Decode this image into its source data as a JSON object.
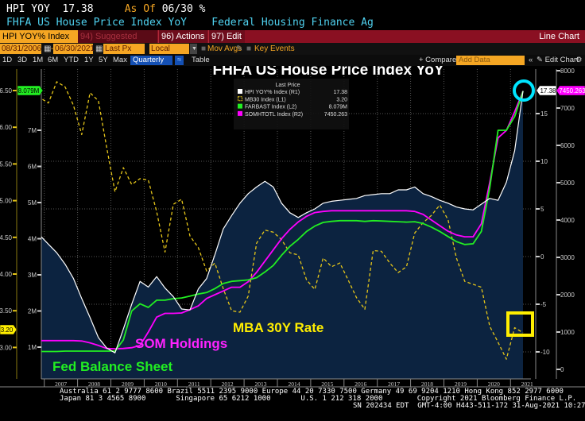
{
  "header": {
    "ticker": "HPI YOY",
    "value": "17.38",
    "as_of_label": "As Of",
    "as_of_date": "06/30",
    "unit": "%",
    "description": "FHFA US House Price Index YoY",
    "source": "Federal Housing Finance Ag"
  },
  "toolbar": {
    "security": "HPI YOY% Index",
    "suggested_charts": "94) Suggested Charts",
    "actions": "96) Actions ▾",
    "edit": "97) Edit ▾",
    "view": "Line Chart",
    "start_date": "08/31/2006",
    "end_date": "06/30/2021",
    "date_sep": "-",
    "price_field": "Last Px",
    "currency": "Local CCY",
    "mov_avgs": "Mov Avgs",
    "key_events": "Key Events",
    "periods": [
      "1D",
      "3D",
      "1M",
      "6M",
      "YTD",
      "1Y",
      "5Y",
      "Max"
    ],
    "frequency": "Quarterly ▼",
    "table": "Table",
    "compare": "+ Compare ▾",
    "add_data_placeholder": "Add Data",
    "collapse": "«",
    "edit_chart": "✎ Edit Chart",
    "settings_icon": "⚙"
  },
  "footer": {
    "line1": "Australia 61 2 9777 8600 Brazil 5511 2395 9000 Europe 44 20 7330 7500 Germany 49 69 9204 1210 Hong Kong 852 2977 6000",
    "line2": "Japan 81 3 4565 8900       Singapore 65 6212 1000       U.S. 1 212 318 2000        Copyright 2021 Bloomberg Finance L.P.",
    "line3": "SN 202434 EDT  GMT-4:00 H443-511-172 31-Aug-2021 10:27:18"
  },
  "colors": {
    "hpi": "#ffffff",
    "hpi_fill": "#0c2340",
    "mb30": "#e6c619",
    "farbast": "#22ee22",
    "somhtotl": "#ff00ff",
    "toolbar_red": "#8a1022",
    "orange": "#f5a623",
    "highlight_circle": "#00e5ff",
    "highlight_box": "#ffee00"
  },
  "chart_data": {
    "type": "line",
    "title": "FHFA US House Price Index YoY",
    "x": [
      "2006Q3",
      "2006Q4",
      "2007Q1",
      "2007Q2",
      "2007Q3",
      "2007Q4",
      "2008Q1",
      "2008Q2",
      "2008Q3",
      "2008Q4",
      "2009Q1",
      "2009Q2",
      "2009Q3",
      "2009Q4",
      "2010Q1",
      "2010Q2",
      "2010Q3",
      "2010Q4",
      "2011Q1",
      "2011Q2",
      "2011Q3",
      "2011Q4",
      "2012Q1",
      "2012Q2",
      "2012Q3",
      "2012Q4",
      "2013Q1",
      "2013Q2",
      "2013Q3",
      "2013Q4",
      "2014Q1",
      "2014Q2",
      "2014Q3",
      "2014Q4",
      "2015Q1",
      "2015Q2",
      "2015Q3",
      "2015Q4",
      "2016Q1",
      "2016Q2",
      "2016Q3",
      "2016Q4",
      "2017Q1",
      "2017Q2",
      "2017Q3",
      "2017Q4",
      "2018Q1",
      "2018Q2",
      "2018Q3",
      "2018Q4",
      "2019Q1",
      "2019Q2",
      "2019Q3",
      "2019Q4",
      "2020Q1",
      "2020Q2",
      "2020Q3",
      "2020Q4",
      "2021Q1",
      "2021Q2"
    ],
    "x_tick_labels": [
      "2007",
      "2008",
      "2009",
      "2010",
      "2011",
      "2012",
      "2013",
      "2014",
      "2015",
      "2016",
      "2017",
      "2018",
      "2019",
      "2020",
      "2021"
    ],
    "series": [
      {
        "name": "HPI YOY% Index (R1)",
        "axis": "R1",
        "last": "17.38",
        "style": "area",
        "values": [
          4.0,
          2.2,
          1.3,
          0.4,
          -0.8,
          -2.3,
          -4.4,
          -6.4,
          -8.5,
          -9.6,
          -10.1,
          -7.6,
          -5.0,
          -2.6,
          -3.2,
          -2.1,
          -3.3,
          -4.2,
          -5.5,
          -5.6,
          -3.4,
          -2.3,
          0.2,
          2.9,
          4.3,
          5.6,
          6.6,
          7.3,
          7.9,
          7.3,
          5.6,
          4.6,
          4.1,
          4.6,
          5.0,
          5.6,
          5.8,
          5.9,
          6.0,
          6.1,
          6.4,
          6.5,
          6.6,
          6.6,
          7.0,
          7.0,
          7.3,
          6.6,
          6.3,
          5.9,
          5.6,
          5.2,
          5.0,
          4.9,
          5.5,
          6.1,
          5.9,
          7.8,
          11.1,
          17.38
        ]
      },
      {
        "name": "MB30 Index (L1)",
        "axis": "L1",
        "last": "3.20",
        "style": "dashed",
        "values": [
          6.4,
          6.4,
          6.33,
          6.62,
          6.55,
          6.3,
          5.9,
          6.47,
          6.36,
          5.72,
          5.12,
          5.45,
          5.22,
          5.3,
          5.28,
          4.85,
          4.3,
          4.95,
          5.02,
          4.52,
          4.36,
          4.04,
          4.15,
          3.8,
          3.5,
          3.48,
          3.7,
          4.42,
          4.6,
          4.57,
          4.47,
          4.29,
          4.26,
          3.92,
          3.79,
          4.22,
          4.1,
          4.15,
          3.92,
          3.68,
          3.52,
          4.32,
          4.31,
          4.15,
          4.02,
          4.1,
          4.56,
          4.7,
          4.8,
          4.94,
          4.74,
          4.22,
          3.9,
          3.86,
          3.82,
          3.29,
          3.07,
          2.84,
          3.27,
          3.2
        ]
      },
      {
        "name": "FARBAST Index (L2)",
        "axis": "L2",
        "last": "8.079M",
        "unit": "millions",
        "style": "line",
        "values": [
          0.88,
          0.88,
          0.88,
          0.88,
          0.89,
          0.89,
          0.89,
          0.89,
          0.89,
          0.89,
          0.89,
          1.2,
          2.0,
          2.2,
          2.1,
          2.3,
          2.3,
          2.34,
          2.36,
          2.41,
          2.47,
          2.51,
          2.62,
          2.76,
          2.82,
          2.84,
          2.86,
          2.92,
          3.08,
          3.26,
          3.54,
          3.79,
          3.98,
          4.2,
          4.35,
          4.45,
          4.48,
          4.5,
          4.5,
          4.5,
          4.48,
          4.5,
          4.49,
          4.48,
          4.47,
          4.46,
          4.47,
          4.42,
          4.32,
          4.2,
          4.06,
          3.92,
          3.84,
          3.86,
          4.2,
          5.4,
          7.0,
          7.0,
          7.38,
          8.079
        ]
      },
      {
        "name": "SOMHTOTL Index (R2)",
        "axis": "R2",
        "last": "7450.263",
        "style": "line",
        "values": [
          770,
          770,
          770,
          770,
          770,
          770,
          760,
          710,
          640,
          560,
          550,
          560,
          580,
          640,
          1000,
          1400,
          1500,
          1500,
          1510,
          1600,
          1700,
          1900,
          2000,
          2100,
          2200,
          2200,
          2350,
          2600,
          2900,
          3200,
          3500,
          3750,
          3950,
          4100,
          4200,
          4230,
          4250,
          4250,
          4250,
          4250,
          4250,
          4250,
          4250,
          4250,
          4250,
          4250,
          4230,
          4150,
          4000,
          3850,
          3700,
          3600,
          3550,
          3550,
          3900,
          5000,
          6200,
          6400,
          6900,
          7450.263
        ]
      }
    ],
    "axes": {
      "L1": {
        "min": 2.9,
        "max": 6.7,
        "ticks": [
          "3.00",
          "3.50",
          "4.00",
          "4.50",
          "5.00",
          "5.50",
          "6.00",
          "6.50"
        ],
        "tag": "3.20"
      },
      "L2": {
        "min": 0.55,
        "max": 8.2,
        "unit": "M",
        "ticks": [
          "1M",
          "2M",
          "3M",
          "4M",
          "5M",
          "6M",
          "7M"
        ],
        "tag": "8.079M"
      },
      "R1": {
        "min": -12,
        "max": 19.5,
        "ticks": [
          "15",
          "10",
          "5",
          "0",
          "-5",
          "-10"
        ],
        "tag": "17.38"
      },
      "R2": {
        "min": -50,
        "max": 8050,
        "ticks": [
          "8000",
          "7000",
          "6000",
          "5000",
          "4000",
          "3000",
          "2000",
          "1000",
          "0"
        ],
        "tag": "7450.263"
      }
    },
    "legend": {
      "title": "Last Price",
      "placement": "top-center",
      "entries": [
        {
          "label": "HPI YOY% Index  (R1)",
          "value": "17.38"
        },
        {
          "label": "MB30 Index  (L1)",
          "value": "3.20"
        },
        {
          "label": "FARBAST Index  (L2)",
          "value": "8.079M"
        },
        {
          "label": "SOMHTOTL Index  (R2)",
          "value": "7450.263"
        }
      ]
    },
    "annotations": [
      {
        "text": "MBA 30Y Rate",
        "color": "#ffee00"
      },
      {
        "text": "SOM Holdings",
        "color": "#ff22ff"
      },
      {
        "text": "Fed Balance Sheet",
        "color": "#22ee22"
      }
    ],
    "grid": true
  }
}
